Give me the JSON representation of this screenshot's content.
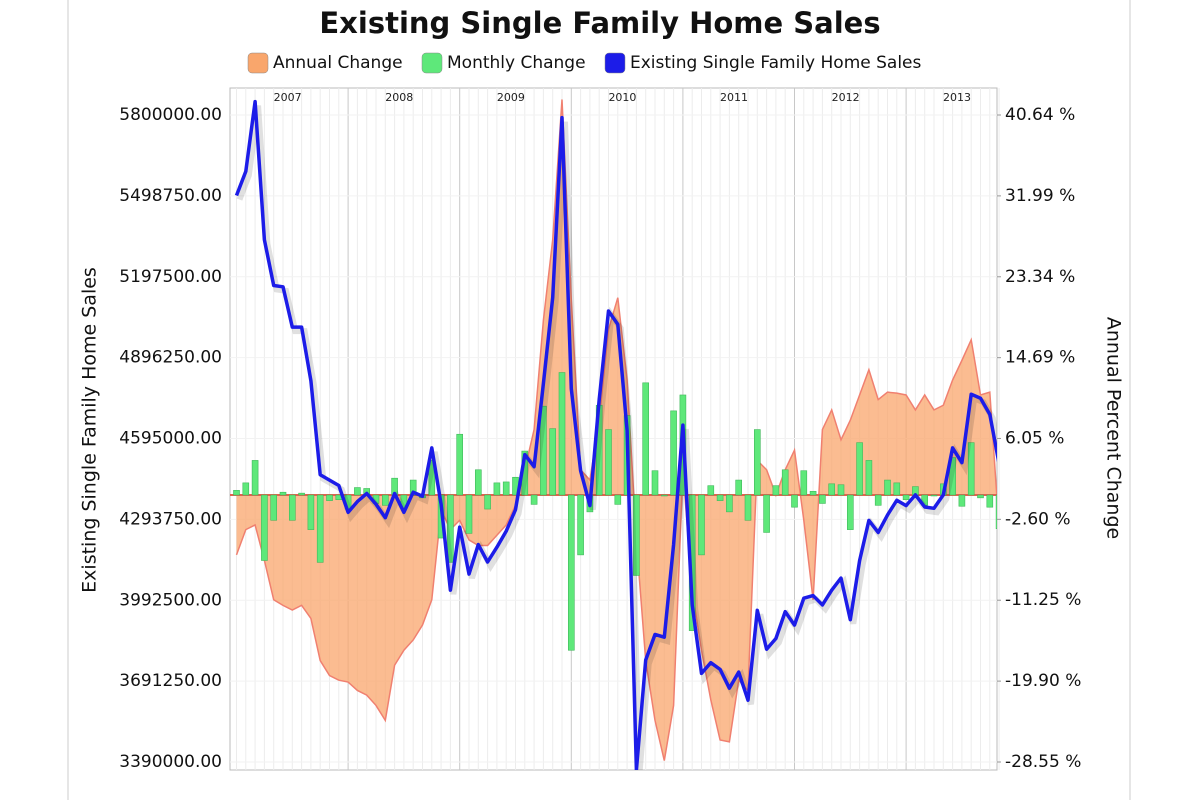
{
  "chart_data": {
    "type": "combo",
    "title": "Existing Single Family Home Sales",
    "y_label": "Existing Single Family Home Sales",
    "y2_label": "Annual Percent Change",
    "categories": [
      null,
      null,
      null,
      null,
      null,
      null,
      null,
      null,
      null,
      null,
      null,
      null,
      null,
      null,
      null,
      null,
      null,
      null,
      null,
      null,
      null,
      null,
      null,
      null,
      null,
      null,
      null,
      null,
      null,
      null,
      null,
      null,
      null,
      null,
      null,
      null,
      null,
      null,
      null,
      null,
      null,
      null,
      null,
      null,
      null,
      null,
      null,
      null,
      null,
      null,
      null,
      null,
      null,
      null,
      null,
      null,
      null,
      null,
      null,
      null,
      null,
      null,
      null,
      null,
      null,
      null,
      null,
      null,
      null,
      null,
      null,
      null,
      null,
      null,
      null,
      null,
      null,
      null,
      null,
      null,
      null,
      null,
      null
    ],
    "year_labels": [
      "2007",
      "2008",
      "2009",
      "2010",
      "2011",
      "2012",
      "2013"
    ],
    "ylim": [
      3390000,
      5800000
    ],
    "yticks": [
      {
        "value": 3390000,
        "label": "3390000.00"
      },
      {
        "value": 3691250,
        "label": "3691250.00"
      },
      {
        "value": 3992500,
        "label": "3992500.00"
      },
      {
        "value": 4293750,
        "label": "4293750.00"
      },
      {
        "value": 4595000,
        "label": "4595000.00"
      },
      {
        "value": 4896250,
        "label": "4896250.00"
      },
      {
        "value": 5197500,
        "label": "5197500.00"
      },
      {
        "value": 5498750,
        "label": "5498750.00"
      },
      {
        "value": 5800000,
        "label": "5800000.00"
      }
    ],
    "y2lim": [
      -28.55,
      40.64
    ],
    "y2ticks": [
      {
        "value": -28.55,
        "label": "-28.55 %"
      },
      {
        "value": -19.9,
        "label": "-19.90 %"
      },
      {
        "value": -11.25,
        "label": "-11.25 %"
      },
      {
        "value": -2.6,
        "label": "-2.60 %"
      },
      {
        "value": 6.05,
        "label": "6.05 %"
      },
      {
        "value": 14.69,
        "label": "14.69 %"
      },
      {
        "value": 23.34,
        "label": "23.34 %"
      },
      {
        "value": 31.99,
        "label": "31.99 %"
      },
      {
        "value": 40.64,
        "label": "40.64 %"
      }
    ],
    "grid": true,
    "legend": "top",
    "series": [
      {
        "name": "Annual Change",
        "type": "area",
        "axis": "y2",
        "color": "#f9a66c",
        "values": [
          -6.4,
          -3.7,
          -3.2,
          -7.0,
          -11.2,
          -11.8,
          -12.3,
          -11.8,
          -13.2,
          -17.7,
          -19.3,
          -19.8,
          -20.0,
          -20.9,
          -21.4,
          -22.5,
          -24.1,
          -18.2,
          -16.6,
          -15.5,
          -13.9,
          -11.2,
          -1.6,
          -3.7,
          -2.7,
          -4.8,
          -5.4,
          -5.4,
          -4.3,
          -3.2,
          -1.1,
          2.7,
          7.0,
          18.7,
          27.3,
          42.3,
          20.9,
          2.7,
          1.6,
          8.0,
          17.7,
          21.1,
          12.3,
          -4.8,
          -17.7,
          -24.1,
          -28.4,
          -22.5,
          2.7,
          -10.2,
          -16.6,
          -21.9,
          -26.2,
          -26.4,
          -19.8,
          -20.9,
          3.7,
          2.7,
          0,
          2.7,
          4.8,
          -2.7,
          -11.2,
          7.0,
          9.1,
          5.9,
          8.0,
          10.7,
          13.4,
          10.2,
          11.0,
          10.9,
          10.7,
          9.1,
          10.7,
          9.1,
          9.6,
          12.3,
          14.4,
          16.6,
          10.7,
          11.0,
          -3.7
        ]
      },
      {
        "name": "Monthly Change",
        "type": "bar",
        "axis": "y2",
        "color": "#5ee87a",
        "values": [
          0.5,
          1.3,
          3.7,
          -7.0,
          -2.7,
          0.3,
          -2.7,
          0.2,
          -3.7,
          -7.2,
          -0.6,
          -0.5,
          -1.5,
          0.8,
          0.7,
          -0.9,
          -1.1,
          1.8,
          -1.4,
          1.6,
          -0.3,
          3.7,
          -4.6,
          -7.2,
          6.5,
          -4.1,
          2.7,
          -1.5,
          1.3,
          1.4,
          1.9,
          4.7,
          -1.0,
          9.5,
          7.1,
          13.1,
          -16.6,
          -6.4,
          -1.8,
          9.6,
          7.0,
          -1.0,
          8.5,
          -8.6,
          12.0,
          2.6,
          -0.1,
          9.0,
          10.7,
          -14.5,
          -6.4,
          1.0,
          -0.6,
          -1.8,
          1.6,
          -2.7,
          7.0,
          -4.0,
          1.0,
          2.7,
          -1.3,
          2.6,
          0.4,
          -0.9,
          1.2,
          1.1,
          -3.7,
          5.6,
          3.7,
          -1.1,
          1.6,
          1.3,
          -0.5,
          0.9,
          -1.1,
          -0.1,
          1.2,
          4.0,
          -1.2,
          5.6,
          -0.3,
          -1.3,
          -3.6
        ]
      },
      {
        "name": "Existing Single Family Home Sales",
        "type": "line",
        "color": "#1c1ce8",
        "values": [
          5500000,
          5590000,
          5850000,
          5335000,
          5165000,
          5160000,
          5010000,
          5010000,
          4810000,
          4460000,
          4440000,
          4420000,
          4320000,
          4360000,
          4390000,
          4350000,
          4300000,
          4390000,
          4320000,
          4395000,
          4380000,
          4560000,
          4350000,
          4030000,
          4265000,
          4090000,
          4200000,
          4135000,
          4190000,
          4250000,
          4330000,
          4535000,
          4490000,
          4800000,
          5120000,
          5790000,
          4780000,
          4475000,
          4345000,
          4740000,
          5070000,
          5020000,
          4625000,
          3360000,
          3770000,
          3865000,
          3855000,
          4200000,
          4645000,
          3975000,
          3720000,
          3760000,
          3735000,
          3665000,
          3725000,
          3620000,
          3955000,
          3810000,
          3850000,
          3950000,
          3900000,
          4000000,
          4010000,
          3975000,
          4030000,
          4075000,
          3920000,
          4140000,
          4290000,
          4245000,
          4310000,
          4365000,
          4345000,
          4385000,
          4340000,
          4335000,
          4385000,
          4560000,
          4505000,
          4760000,
          4745000,
          4685000,
          4500000
        ]
      }
    ]
  }
}
